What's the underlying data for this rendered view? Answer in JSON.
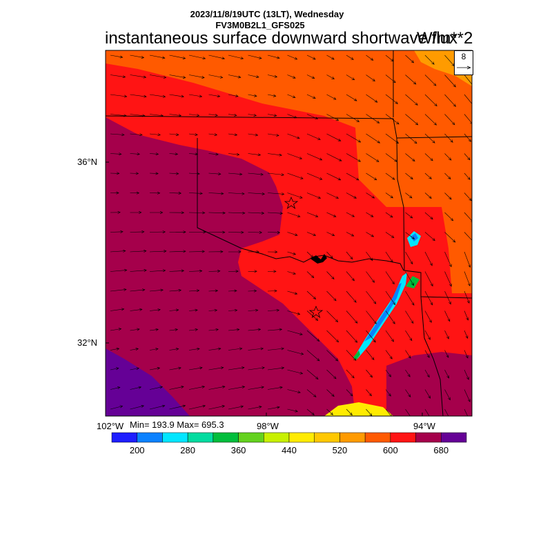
{
  "header": {
    "datetime": "2023/11/8/19UTC (13LT), Wednesday",
    "model": "FV3M0B2L1_GFS025",
    "title": "instantaneous surface downward shortwave flux",
    "units": "W/m**2"
  },
  "axes": {
    "lat_labels": [
      "36°N",
      "32°N"
    ],
    "lon_labels": [
      "102°W",
      "98°W",
      "94°W"
    ]
  },
  "stats": {
    "text": "Min= 193.9 Max= 695.3"
  },
  "colorbar": {
    "colors": [
      "#1e1eff",
      "#0a82ff",
      "#00e6ff",
      "#00dca0",
      "#00be3c",
      "#64d21e",
      "#c8f000",
      "#ffeb00",
      "#ffc800",
      "#ff9b00",
      "#ff5a00",
      "#ff1414",
      "#a5004b",
      "#650096"
    ],
    "labels": [
      "200",
      "280",
      "360",
      "440",
      "520",
      "600",
      "680"
    ]
  },
  "vector_reference": {
    "value": "8"
  },
  "field_colors": {
    "deep_purple": "#650096",
    "maroon": "#a5004b",
    "red": "#ff1414",
    "orange": "#ff5a00",
    "light_orange": "#ff9b00",
    "yellow": "#ffeb00",
    "cyan": "#00e6ff",
    "blue": "#0a82ff",
    "green": "#00be3c"
  }
}
